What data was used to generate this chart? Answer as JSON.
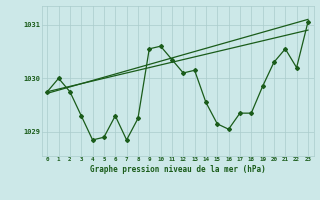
{
  "xlabel": "Graphe pression niveau de la mer (hPa)",
  "background_color": "#cce8e8",
  "grid_color": "#aacccc",
  "line_color": "#1a5c1a",
  "text_color": "#1a5c1a",
  "x_ticks": [
    0,
    1,
    2,
    3,
    4,
    5,
    6,
    7,
    8,
    9,
    10,
    11,
    12,
    13,
    14,
    15,
    16,
    17,
    18,
    19,
    20,
    21,
    22,
    23
  ],
  "ylim": [
    1028.55,
    1031.35
  ],
  "yticks": [
    1029,
    1030,
    1031
  ],
  "series_main": [
    1029.75,
    1030.0,
    1029.75,
    1029.3,
    1028.85,
    1028.9,
    1029.3,
    1028.85,
    1029.25,
    1030.55,
    1030.6,
    1030.35,
    1030.1,
    1030.15,
    1029.55,
    1029.15,
    1029.05,
    1029.35,
    1029.35,
    1029.85,
    1030.3,
    1030.55,
    1030.2,
    1031.05
  ],
  "series_trend1": [
    1029.75,
    1029.8,
    1029.85,
    1029.9,
    1029.95,
    1030.0,
    1030.05,
    1030.1,
    1030.15,
    1030.2,
    1030.25,
    1030.3,
    1030.35,
    1030.4,
    1030.45,
    1030.5,
    1030.55,
    1030.6,
    1030.65,
    1030.7,
    1030.75,
    1030.8,
    1030.85,
    1030.9
  ],
  "series_trend2": [
    1029.72,
    1029.78,
    1029.84,
    1029.9,
    1029.96,
    1030.02,
    1030.08,
    1030.14,
    1030.2,
    1030.26,
    1030.32,
    1030.38,
    1030.44,
    1030.5,
    1030.56,
    1030.62,
    1030.68,
    1030.74,
    1030.8,
    1030.86,
    1030.92,
    1030.98,
    1031.04,
    1031.1
  ],
  "marker": "D",
  "marker_size": 2.0,
  "linewidth_main": 0.9,
  "linewidth_trend": 0.9
}
